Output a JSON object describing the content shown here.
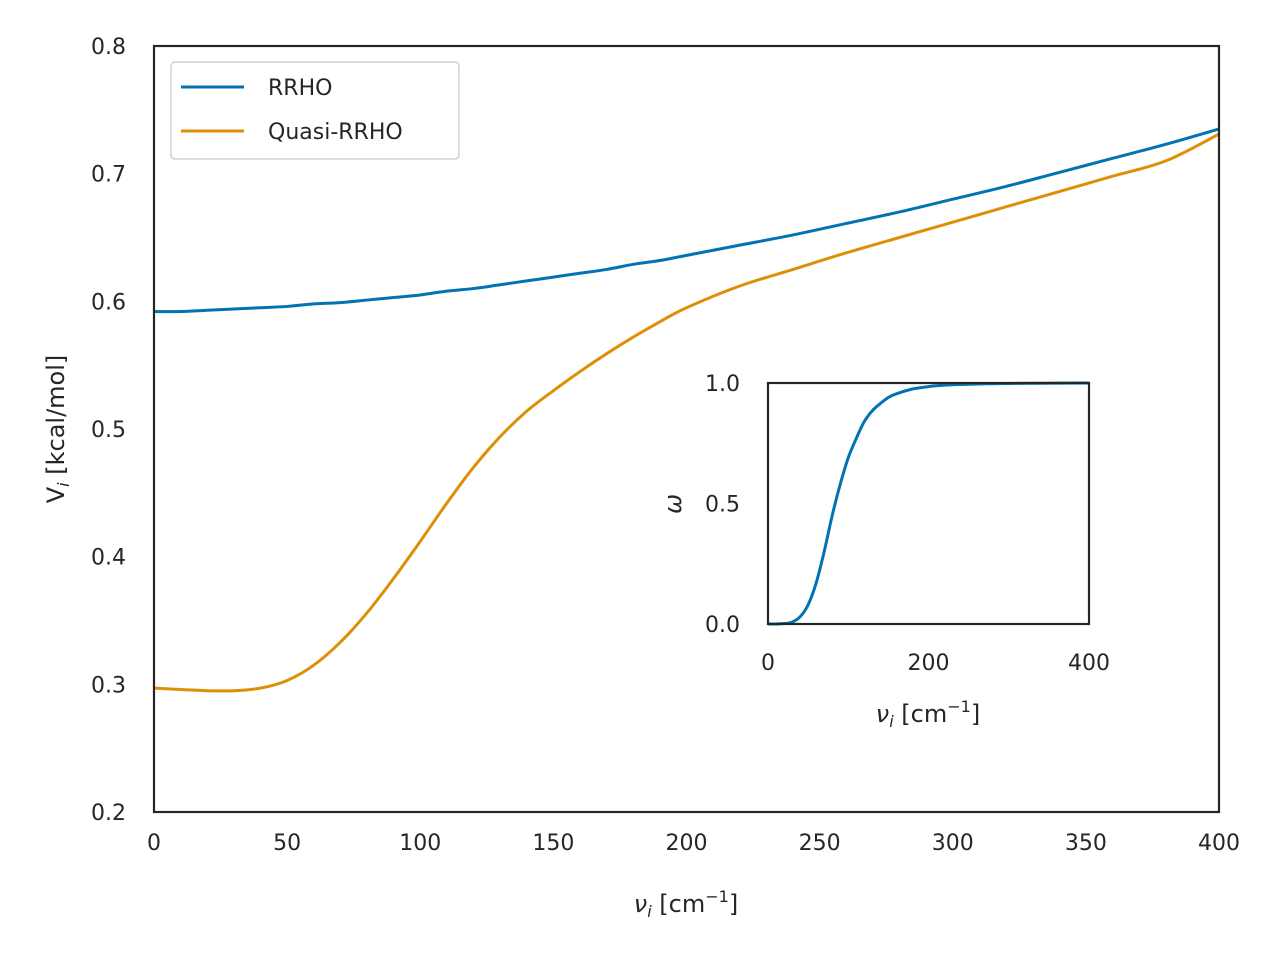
{
  "chart_data": [
    {
      "type": "line",
      "xlim": [
        0,
        400
      ],
      "ylim": [
        0.2,
        0.8
      ],
      "xticks": [
        "0",
        "50",
        "100",
        "150",
        "200",
        "250",
        "300",
        "350",
        "400"
      ],
      "yticks": [
        "0.2",
        "0.3",
        "0.4",
        "0.5",
        "0.6",
        "0.7",
        "0.8"
      ],
      "xlabel": {
        "symbol": "ν",
        "sub": "i",
        "unit_pre": " [cm",
        "sup": "−1",
        "unit_post": "]"
      },
      "ylabel": {
        "symbol": "V",
        "sub": "i",
        "unit": " [kcal/mol]"
      },
      "legend_position": "upper-left",
      "grid": false,
      "x": [
        0,
        10,
        20,
        30,
        40,
        50,
        60,
        70,
        80,
        90,
        100,
        110,
        120,
        130,
        140,
        150,
        160,
        170,
        180,
        190,
        200,
        220,
        240,
        260,
        280,
        300,
        320,
        340,
        360,
        380,
        400
      ],
      "series": [
        {
          "name": "RRHO",
          "color": "#0173b2",
          "values": [
            0.592,
            0.592,
            0.593,
            0.594,
            0.595,
            0.596,
            0.598,
            0.599,
            0.601,
            0.603,
            0.605,
            0.608,
            0.61,
            0.613,
            0.616,
            0.619,
            0.622,
            0.625,
            0.629,
            0.632,
            0.636,
            0.644,
            0.652,
            0.661,
            0.67,
            0.68,
            0.69,
            0.701,
            0.712,
            0.723,
            0.735
          ]
        },
        {
          "name": "Quasi-RRHO",
          "color": "#de8f05",
          "values": [
            0.297,
            0.296,
            0.295,
            0.295,
            0.297,
            0.303,
            0.315,
            0.333,
            0.356,
            0.383,
            0.412,
            0.442,
            0.47,
            0.494,
            0.514,
            0.53,
            0.545,
            0.559,
            0.572,
            0.584,
            0.595,
            0.612,
            0.625,
            0.638,
            0.65,
            0.662,
            0.674,
            0.686,
            0.698,
            0.71,
            0.731
          ]
        }
      ]
    },
    {
      "type": "line",
      "inset": true,
      "xlim": [
        0,
        400
      ],
      "ylim": [
        0,
        1
      ],
      "xticks": [
        "0",
        "200",
        "400"
      ],
      "yticks": [
        "0.0",
        "0.5",
        "1.0"
      ],
      "xlabel": {
        "symbol": "ν",
        "sub": "i",
        "unit_pre": " [cm",
        "sup": "−1",
        "unit_post": "]"
      },
      "ylabel": {
        "symbol": "ω"
      },
      "grid": false,
      "x": [
        0,
        10,
        20,
        30,
        40,
        50,
        60,
        70,
        80,
        90,
        100,
        110,
        120,
        130,
        140,
        150,
        160,
        180,
        200,
        220,
        240,
        260,
        280,
        300,
        340,
        400
      ],
      "series": [
        {
          "color": "#0173b2",
          "values": [
            0.0,
            0.0,
            0.002,
            0.008,
            0.03,
            0.08,
            0.17,
            0.3,
            0.45,
            0.58,
            0.69,
            0.77,
            0.84,
            0.885,
            0.915,
            0.94,
            0.955,
            0.975,
            0.985,
            0.991,
            0.994,
            0.996,
            0.997,
            0.998,
            0.999,
            1.0
          ]
        }
      ]
    }
  ]
}
